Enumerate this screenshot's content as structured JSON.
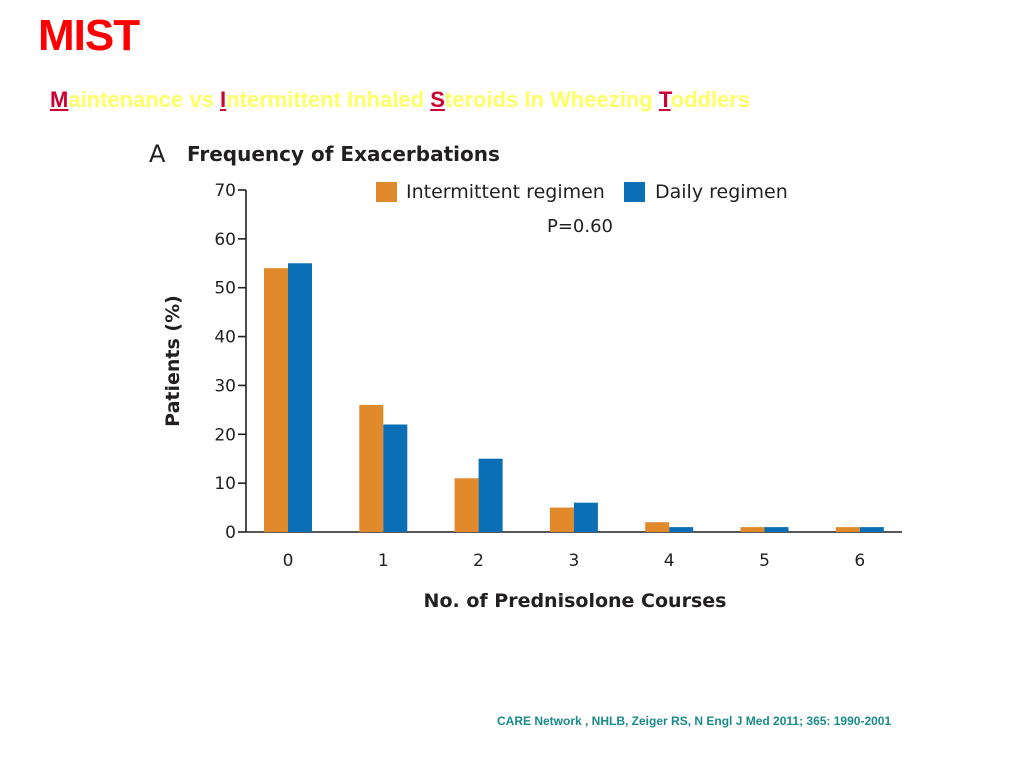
{
  "slide": {
    "title": "MIST",
    "subtitle": [
      {
        "cap": "M",
        "rest": "aintenance vs "
      },
      {
        "cap": "I",
        "rest": "ntermittent Inhaled "
      },
      {
        "cap": "S",
        "rest": "teroids In Wheezing "
      },
      {
        "cap": "T",
        "rest": "oddlers"
      }
    ],
    "citation": "CARE Network , NHLB, Zeiger RS, N Engl J Med 2011; 365: 1990-2001"
  },
  "colors": {
    "title": "#ff0000",
    "subtitle_caps": "#cc0033",
    "subtitle_text": "#ffff66",
    "citation": "#1a8a8a",
    "intermittent": "#e08a2c",
    "daily": "#0a6fb4",
    "axis": "#231f20"
  },
  "chart_data": {
    "type": "bar",
    "panel_label": "A",
    "title": "Frequency of Exacerbations",
    "xlabel": "No. of Prednisolone Courses",
    "ylabel": "Patients (%)",
    "categories": [
      "0",
      "1",
      "2",
      "3",
      "4",
      "5",
      "6"
    ],
    "series": [
      {
        "name": "Intermittent regimen",
        "values": [
          54,
          26,
          11,
          5,
          2,
          1,
          1
        ]
      },
      {
        "name": "Daily regimen",
        "values": [
          55,
          22,
          15,
          6,
          1,
          1,
          1
        ]
      }
    ],
    "ylim": [
      0,
      70
    ],
    "yticks": [
      0,
      10,
      20,
      30,
      40,
      50,
      60,
      70
    ],
    "annotation": "P=0.60",
    "legend_position": "top",
    "grid": false
  }
}
